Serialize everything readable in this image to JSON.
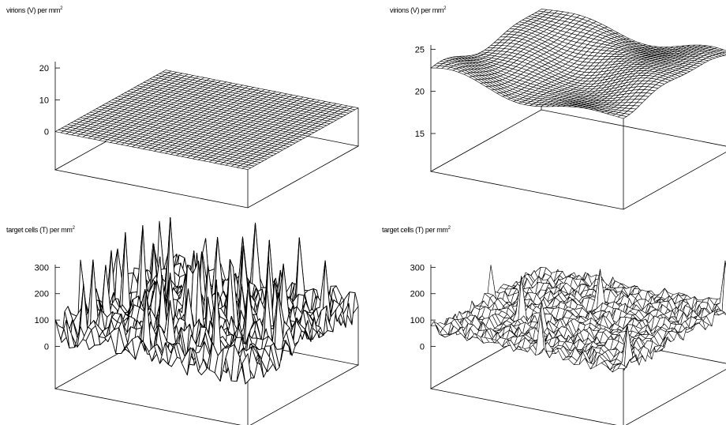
{
  "chart_data": [
    {
      "type": "surface",
      "title": "virions (V) per mm",
      "title_superscript": "2",
      "zticks": [
        0,
        10,
        20
      ],
      "zlim": [
        -12,
        22
      ],
      "shape": "flat",
      "level": 0,
      "grid": 35,
      "amplitude": 0
    },
    {
      "type": "surface",
      "title": "virions (V) per mm",
      "title_superscript": "2",
      "zticks": [
        15,
        20,
        25
      ],
      "zlim": [
        10.5,
        25.5
      ],
      "shape": "wavy",
      "level": 21.5,
      "grid": 35,
      "amplitude": 1.2
    },
    {
      "type": "surface",
      "title": "target cells (T) per mm",
      "title_superscript": "2",
      "zticks": [
        0,
        100,
        200,
        300
      ],
      "zlim": [
        -160,
        310
      ],
      "shape": "spiky",
      "level": 60,
      "grid": 35,
      "amplitude": 90
    },
    {
      "type": "surface",
      "title": "target cells (T) per mm",
      "title_superscript": "2",
      "zticks": [
        0,
        100,
        200,
        300
      ],
      "zlim": [
        -160,
        310
      ],
      "shape": "noisy",
      "level": 60,
      "grid": 35,
      "amplitude": 28
    }
  ]
}
